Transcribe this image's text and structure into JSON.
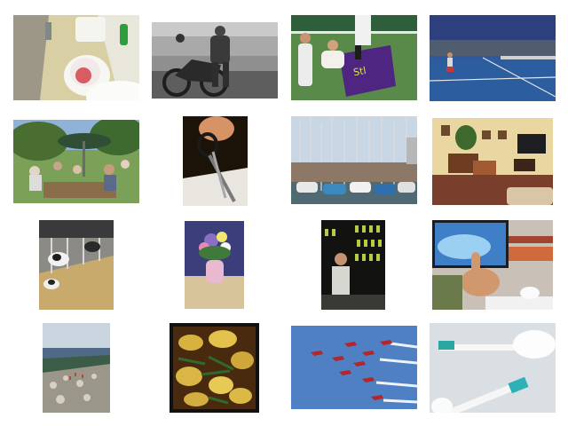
{
  "grid": {
    "background": "#ffffff",
    "tiles": [
      {
        "icon": "toilet-photo-icon"
      },
      {
        "icon": "motorcycle-photo-icon"
      },
      {
        "icon": "tennis-players-photo-icon"
      },
      {
        "icon": "tennis-stadium-photo-icon"
      },
      {
        "icon": "garden-party-photo-icon"
      },
      {
        "icon": "scissors-photo-icon"
      },
      {
        "icon": "marina-boats-photo-icon"
      },
      {
        "icon": "living-room-photo-icon"
      },
      {
        "icon": "cows-barn-photo-icon"
      },
      {
        "icon": "flower-vase-photo-icon"
      },
      {
        "icon": "wine-shop-photo-icon"
      },
      {
        "icon": "thumbs-up-computer-photo-icon"
      },
      {
        "icon": "mountain-summit-photo-icon"
      },
      {
        "icon": "food-pan-photo-icon"
      },
      {
        "icon": "jets-formation-photo-icon"
      },
      {
        "icon": "toothbrushes-photo-icon"
      }
    ]
  }
}
